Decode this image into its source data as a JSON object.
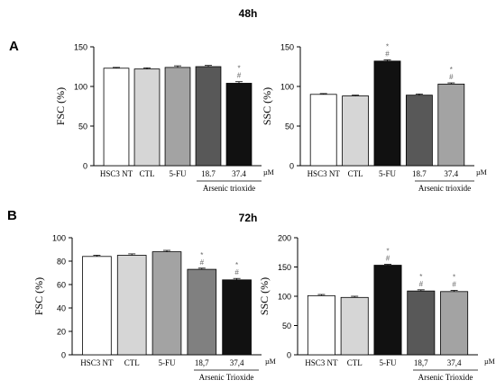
{
  "panels": {
    "A": {
      "letter": "A",
      "title": "48h"
    },
    "B": {
      "letter": "B",
      "title": "72h"
    }
  },
  "chart_data": [
    {
      "id": "A-fsc",
      "type": "bar",
      "panel": "A",
      "ylabel": "FSC (%)",
      "ylim": [
        0,
        150
      ],
      "yticks": [
        0,
        50,
        100,
        150
      ],
      "categories": [
        "HSC3 NT",
        "CTL",
        "5-FU",
        "18.7",
        "37.4"
      ],
      "values": [
        123,
        122,
        124,
        125,
        104
      ],
      "errors": [
        1,
        1.5,
        2,
        1.5,
        2
      ],
      "significance": [
        "",
        "",
        "",
        "",
        "*\n#"
      ],
      "colors": [
        "#ffffff",
        "#d6d6d6",
        "#a3a3a3",
        "#585858",
        "#111111"
      ],
      "unit": "µM",
      "group_label": "Arsenic trioxide"
    },
    {
      "id": "A-ssc",
      "type": "bar",
      "panel": "A",
      "ylabel": "SSC (%)",
      "ylim": [
        0,
        150
      ],
      "yticks": [
        0,
        50,
        100,
        150
      ],
      "categories": [
        "HSC3 NT",
        "CTL",
        "5-FU",
        "18.7",
        "37.4"
      ],
      "values": [
        90,
        88,
        132,
        89,
        103
      ],
      "errors": [
        1,
        1,
        1.5,
        1.5,
        1.5
      ],
      "significance": [
        "",
        "",
        "*\n#",
        "",
        "*\n#"
      ],
      "colors": [
        "#ffffff",
        "#d6d6d6",
        "#111111",
        "#585858",
        "#a3a3a3"
      ],
      "unit": "µM",
      "group_label": "Arsenic trioxide"
    },
    {
      "id": "B-fsc",
      "type": "bar",
      "panel": "B",
      "ylabel": "FSC (%)",
      "ylim": [
        0,
        100
      ],
      "yticks": [
        0,
        20,
        40,
        60,
        80,
        100
      ],
      "categories": [
        "HSC3 NT",
        "CTL",
        "5-FU",
        "18,7",
        "37,4"
      ],
      "values": [
        84,
        85,
        88,
        73,
        64
      ],
      "errors": [
        1,
        1.2,
        1.2,
        1,
        1.2
      ],
      "significance": [
        "",
        "",
        "",
        "*\n#",
        "*\n#"
      ],
      "colors": [
        "#ffffff",
        "#d6d6d6",
        "#a3a3a3",
        "#808080",
        "#111111"
      ],
      "unit": "µM",
      "group_label": "Arsenic Trioxide"
    },
    {
      "id": "B-ssc",
      "type": "bar",
      "panel": "B",
      "ylabel": "SSC (%)",
      "ylim": [
        0,
        200
      ],
      "yticks": [
        0,
        50,
        100,
        150,
        200
      ],
      "categories": [
        "HSC3 NT",
        "CTL",
        "5-FU",
        "18,7",
        "37,4"
      ],
      "values": [
        101,
        98,
        153,
        109,
        108
      ],
      "errors": [
        2,
        2,
        1.5,
        2,
        2
      ],
      "significance": [
        "",
        "",
        "*\n#",
        "*\n#",
        "*\n#"
      ],
      "colors": [
        "#ffffff",
        "#d6d6d6",
        "#111111",
        "#585858",
        "#a3a3a3"
      ],
      "unit": "µM",
      "group_label": "Arsenic Trioxide"
    }
  ]
}
